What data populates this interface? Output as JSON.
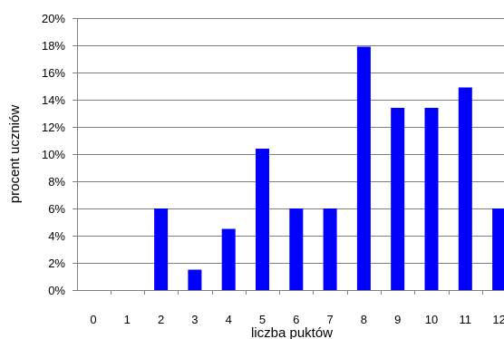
{
  "chart_data": {
    "type": "bar",
    "categories": [
      "0",
      "1",
      "2",
      "3",
      "4",
      "5",
      "6",
      "7",
      "8",
      "9",
      "10",
      "11",
      "12"
    ],
    "series": [
      {
        "values": [
          0,
          0,
          6.0,
          1.5,
          4.5,
          10.4,
          6.0,
          6.0,
          17.9,
          13.4,
          13.4,
          14.9,
          6.0
        ],
        "color": "#0000ff"
      }
    ],
    "xlabel": "liczba puktów",
    "ylabel": "procent uczniów",
    "ylim": [
      0,
      20
    ],
    "yticks": [
      "0%",
      "2%",
      "4%",
      "6%",
      "8%",
      "10%",
      "12%",
      "14%",
      "16%",
      "18%",
      "20%"
    ],
    "grid": true,
    "legend": "none"
  }
}
